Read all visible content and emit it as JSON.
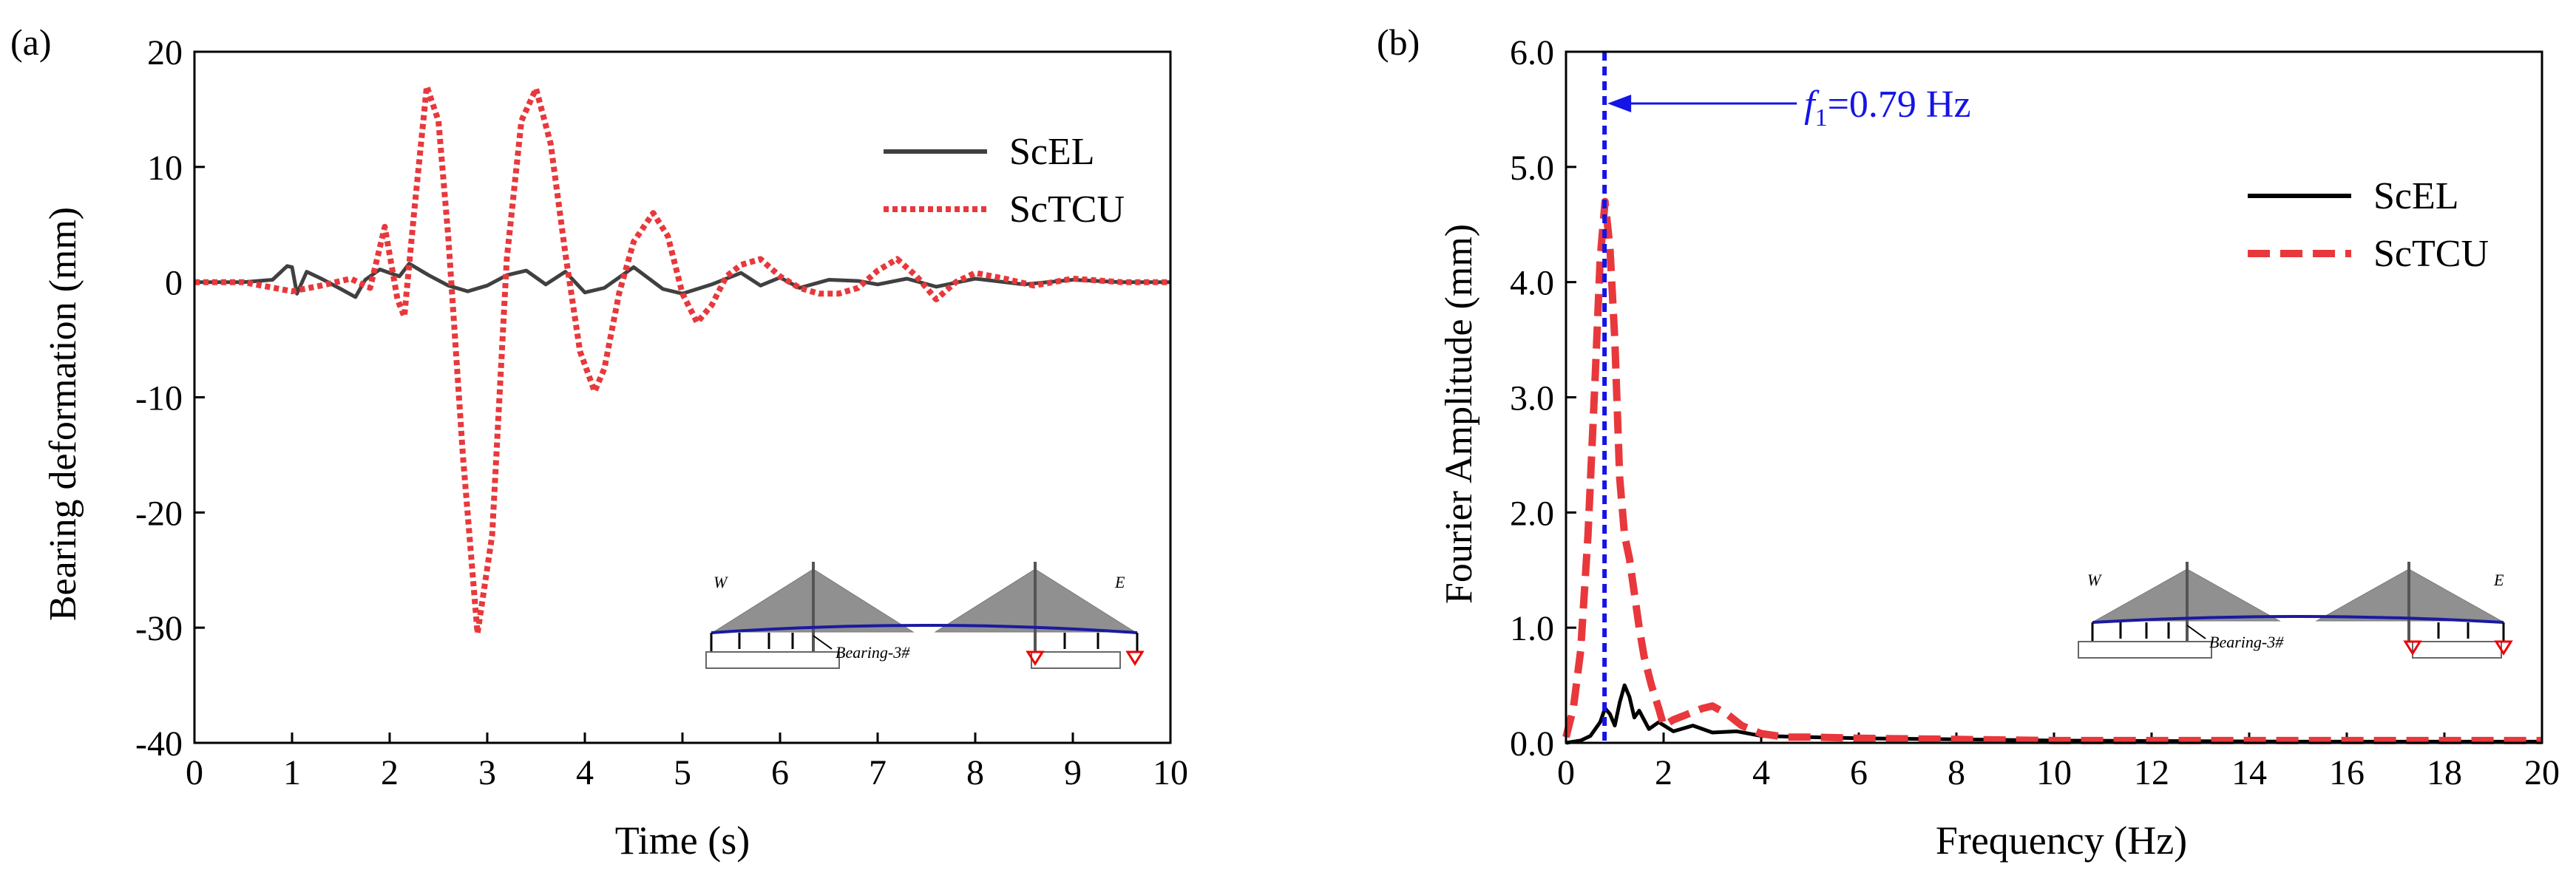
{
  "chart_data": [
    {
      "panel_label": "(a)",
      "type": "line",
      "title": "",
      "xlabel": "Time (s)",
      "ylabel": "Bearing deformation (mm)",
      "xlim": [
        0,
        10
      ],
      "ylim": [
        -40,
        20
      ],
      "xticks": [
        0,
        1,
        2,
        3,
        4,
        5,
        6,
        7,
        8,
        9,
        10
      ],
      "yticks": [
        -40,
        -30,
        -20,
        -10,
        0,
        10,
        20
      ],
      "grid": false,
      "legend_position": "top-right",
      "series": [
        {
          "name": "ScEL",
          "color": "#404040",
          "style": "solid",
          "x": [
            0,
            0.5,
            0.8,
            0.95,
            1.0,
            1.05,
            1.15,
            1.3,
            1.5,
            1.65,
            1.75,
            1.9,
            2.1,
            2.2,
            2.4,
            2.6,
            2.8,
            3.0,
            3.2,
            3.4,
            3.6,
            3.8,
            4.0,
            4.2,
            4.5,
            4.8,
            5.0,
            5.3,
            5.6,
            5.8,
            6.0,
            6.2,
            6.5,
            6.8,
            7.0,
            7.3,
            7.6,
            8.0,
            8.5,
            9.0,
            9.5,
            10.0
          ],
          "y": [
            0,
            0,
            0.2,
            1.4,
            1.3,
            -1.0,
            0.9,
            0.3,
            -0.6,
            -1.3,
            0.2,
            1.1,
            0.5,
            1.6,
            0.6,
            -0.3,
            -0.8,
            -0.3,
            0.6,
            1.0,
            -0.2,
            0.9,
            -0.9,
            -0.5,
            1.3,
            -0.6,
            -1.0,
            -0.2,
            0.8,
            -0.3,
            0.4,
            -0.5,
            0.2,
            0.1,
            -0.2,
            0.3,
            -0.4,
            0.3,
            -0.2,
            0.2,
            0,
            0
          ]
        },
        {
          "name": "ScTCU",
          "color": "#e8383c",
          "style": "dotted",
          "x": [
            0,
            0.5,
            1.0,
            1.3,
            1.6,
            1.8,
            1.95,
            2.08,
            2.15,
            2.25,
            2.38,
            2.5,
            2.6,
            2.75,
            2.9,
            3.05,
            3.2,
            3.35,
            3.5,
            3.65,
            3.8,
            3.95,
            4.1,
            4.2,
            4.35,
            4.5,
            4.7,
            4.85,
            5.0,
            5.15,
            5.3,
            5.45,
            5.6,
            5.8,
            6.0,
            6.2,
            6.4,
            6.6,
            6.8,
            7.0,
            7.2,
            7.4,
            7.6,
            7.8,
            8.0,
            8.3,
            8.6,
            9.0,
            9.5,
            10.0
          ],
          "y": [
            0,
            0,
            -0.8,
            -0.3,
            0.3,
            -0.5,
            4.8,
            -1.5,
            -3.0,
            6.0,
            17.0,
            14.0,
            4.0,
            -15.0,
            -30.5,
            -22.0,
            2.0,
            14.0,
            16.8,
            12.0,
            2.5,
            -6.0,
            -9.5,
            -7.5,
            -1.0,
            3.5,
            6.0,
            4.0,
            -1.0,
            -3.5,
            -2.0,
            0.5,
            1.5,
            2.0,
            0.5,
            -0.5,
            -1.0,
            -1.0,
            -0.5,
            1.0,
            2.0,
            0.5,
            -1.5,
            0.0,
            0.8,
            0.3,
            -0.3,
            0.3,
            0,
            0
          ]
        }
      ],
      "inset": {
        "labels": [
          "W",
          "E",
          "Bearing-3#"
        ]
      }
    },
    {
      "panel_label": "(b)",
      "type": "line",
      "title": "",
      "xlabel": "Frequency (Hz)",
      "ylabel": "Fourier Amplitude (mm)",
      "xlim": [
        0,
        20
      ],
      "ylim": [
        0,
        6.0
      ],
      "xticks": [
        0,
        2,
        4,
        6,
        8,
        10,
        12,
        14,
        16,
        18,
        20
      ],
      "yticks": [
        0.0,
        1.0,
        2.0,
        3.0,
        4.0,
        5.0,
        6.0
      ],
      "ytick_labels": [
        "0.0",
        "1.0",
        "2.0",
        "3.0",
        "4.0",
        "5.0",
        "6.0"
      ],
      "grid": false,
      "legend_position": "center-right",
      "series": [
        {
          "name": "ScEL",
          "color": "#000000",
          "style": "solid",
          "x": [
            0,
            0.3,
            0.5,
            0.7,
            0.8,
            0.9,
            1.0,
            1.1,
            1.2,
            1.3,
            1.4,
            1.5,
            1.7,
            1.9,
            2.2,
            2.6,
            3.0,
            3.5,
            4.0,
            5.0,
            6.0,
            8.0,
            10.0,
            15.0,
            20.0
          ],
          "y": [
            0,
            0.02,
            0.06,
            0.18,
            0.3,
            0.25,
            0.15,
            0.35,
            0.5,
            0.4,
            0.22,
            0.28,
            0.12,
            0.18,
            0.1,
            0.15,
            0.09,
            0.1,
            0.06,
            0.05,
            0.04,
            0.03,
            0.02,
            0.01,
            0.01
          ]
        },
        {
          "name": "ScTCU",
          "color": "#e8383c",
          "style": "dashed",
          "x": [
            0,
            0.15,
            0.3,
            0.45,
            0.6,
            0.7,
            0.8,
            0.9,
            1.0,
            1.1,
            1.2,
            1.3,
            1.4,
            1.5,
            1.6,
            1.75,
            1.9,
            2.0,
            2.2,
            2.5,
            2.8,
            3.0,
            3.3,
            3.6,
            4.0,
            4.5,
            5.0,
            6.0,
            8.0,
            10.0,
            15.0,
            20.0
          ],
          "y": [
            0.05,
            0.3,
            0.8,
            1.8,
            3.2,
            4.2,
            4.7,
            4.3,
            3.5,
            2.3,
            1.8,
            1.6,
            1.3,
            1.0,
            0.75,
            0.5,
            0.3,
            0.15,
            0.2,
            0.25,
            0.3,
            0.32,
            0.25,
            0.15,
            0.08,
            0.05,
            0.05,
            0.04,
            0.03,
            0.02,
            0.02,
            0.02
          ]
        }
      ],
      "annotations": [
        {
          "type": "vline",
          "x": 0.79,
          "color": "#1414e6",
          "style": "dashed",
          "label_prefix": "f",
          "label_subscript": "1",
          "label_rest": "=0.79 Hz"
        }
      ],
      "inset": {
        "labels": [
          "W",
          "E",
          "Bearing-3#"
        ]
      }
    }
  ]
}
